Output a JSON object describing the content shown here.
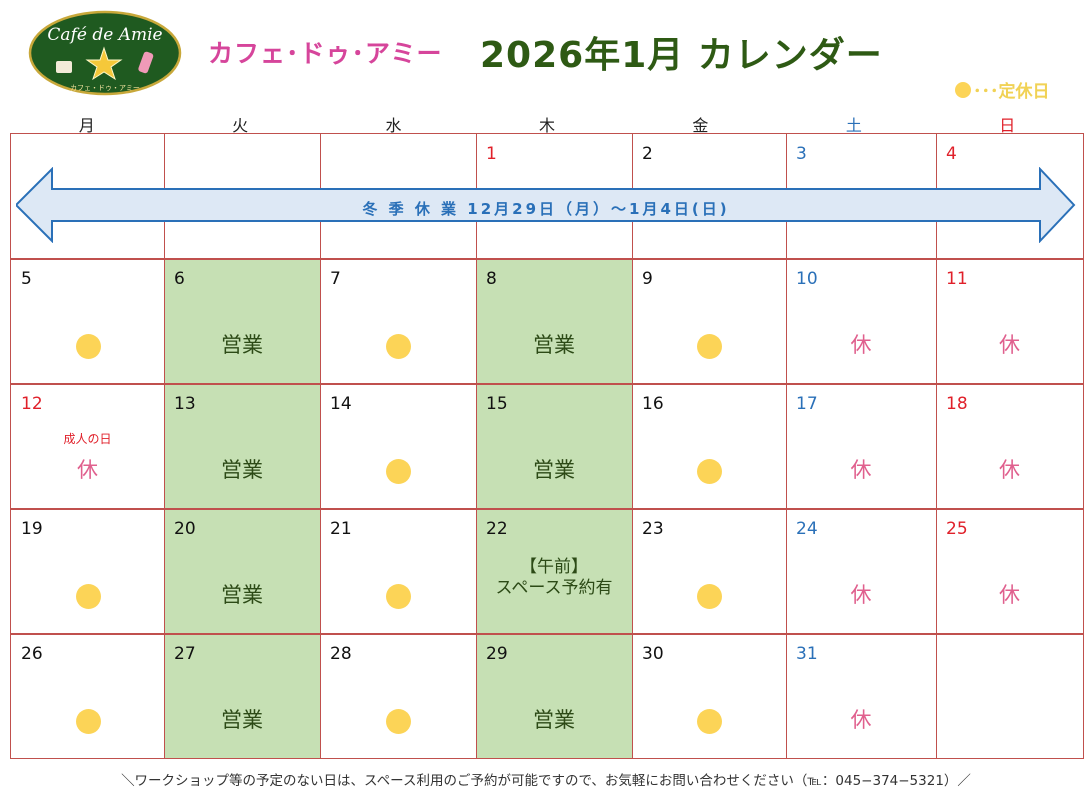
{
  "logo": {
    "text": "Café de Amie",
    "subtext": "カフェ・ドゥ・アミー"
  },
  "header": {
    "shop_name": "カフェ･ドゥ･アミー",
    "title": "2026年1月 カレンダー",
    "legend_text": "･･･定休日"
  },
  "weekdays": [
    "月",
    "火",
    "水",
    "木",
    "金",
    "土",
    "日"
  ],
  "winter_break": "冬 季 休 業  12月29日（月）～1月4日(日)",
  "labels": {
    "open": "営業",
    "rest": "休"
  },
  "cells": {
    "w0": [
      "",
      "",
      "",
      "1",
      "2",
      "3",
      "4"
    ],
    "w1": [
      "5",
      "6",
      "7",
      "8",
      "9",
      "10",
      "11"
    ],
    "w2": [
      "12",
      "13",
      "14",
      "15",
      "16",
      "17",
      "18"
    ],
    "w3": [
      "19",
      "20",
      "21",
      "22",
      "23",
      "24",
      "25"
    ],
    "w4": [
      "26",
      "27",
      "28",
      "29",
      "30",
      "31",
      ""
    ]
  },
  "holiday_name": "成人の日",
  "special_note": {
    "line1": "【午前】",
    "line2": "スペース予約有"
  },
  "footer": "＼ワークショップ等の予定のない日は、スペース利用のご予約が可能ですので、お気軽にお問い合わせください（℡：045−374−5321）／",
  "colors": {
    "open_bg": "#c6e0b4",
    "closed_dot": "#fcd457",
    "grid_line": "#c0504d",
    "title": "#2e5a14",
    "shop_name": "#d6459b",
    "saturday": "#2a70b8",
    "sunday": "#e0202a",
    "rest": "#e0608e",
    "arrow_fill": "#dde8f5",
    "arrow_stroke": "#2a70b8"
  }
}
